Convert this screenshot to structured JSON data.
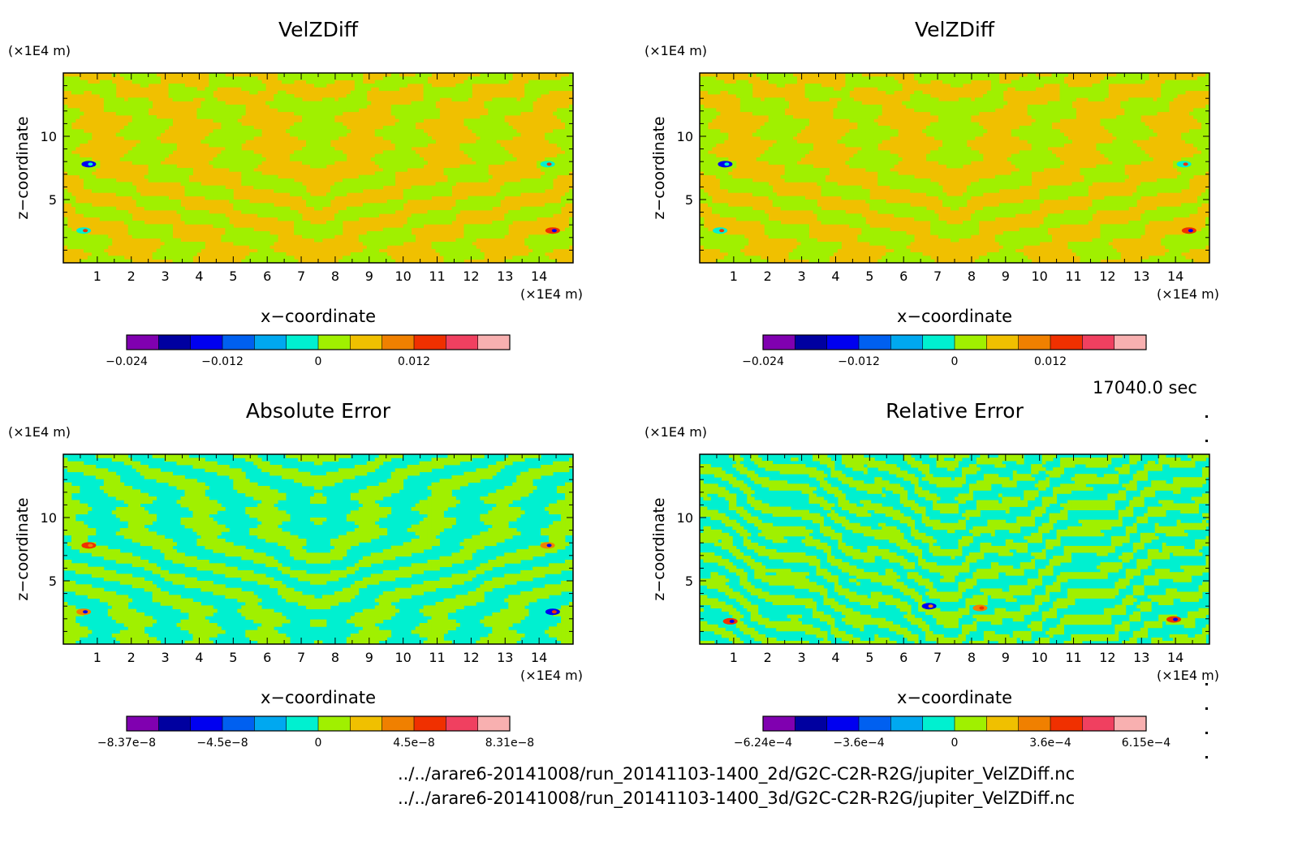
{
  "time_label": "17040.0 sec",
  "files": [
    "../../arare6-20141008/run_20141103-1400_2d/G2C-C2R-R2G/jupiter_VelZDiff.nc",
    "../../arare6-20141008/run_20141103-1400_3d/G2C-C2R-R2G/jupiter_VelZDiff.nc"
  ],
  "palette": [
    "#8000b0",
    "#0000a0",
    "#0000f0",
    "#0060f0",
    "#00a8f0",
    "#00f0d0",
    "#a0f000",
    "#f0c000",
    "#f08000",
    "#f03000",
    "#f04060",
    "#f8b0b0"
  ],
  "chart_data": [
    {
      "type": "heatmap",
      "title": "VelZDiff",
      "xlabel": "x−coordinate",
      "ylabel": "z−coordinate",
      "x_unit": "(×1E4 m)",
      "y_unit": "(×1E4 m)",
      "xlim": [
        0,
        15
      ],
      "ylim": [
        0,
        15
      ],
      "x_ticks": [
        1,
        2,
        3,
        4,
        5,
        6,
        7,
        8,
        9,
        10,
        11,
        12,
        13,
        14
      ],
      "y_ticks": [
        5,
        10
      ],
      "pattern": "velz",
      "colorbar": {
        "tick_labels": [
          "−0.024",
          "−0.012",
          "0",
          "0.012"
        ],
        "tick_bins": [
          0,
          3,
          6,
          9
        ],
        "bins": 12
      }
    },
    {
      "type": "heatmap",
      "title": "VelZDiff",
      "xlabel": "x−coordinate",
      "ylabel": "z−coordinate",
      "x_unit": "(×1E4 m)",
      "y_unit": "(×1E4 m)",
      "xlim": [
        0,
        15
      ],
      "ylim": [
        0,
        15
      ],
      "x_ticks": [
        1,
        2,
        3,
        4,
        5,
        6,
        7,
        8,
        9,
        10,
        11,
        12,
        13,
        14
      ],
      "y_ticks": [
        5,
        10
      ],
      "pattern": "velz",
      "colorbar": {
        "tick_labels": [
          "−0.024",
          "−0.012",
          "0",
          "0.012"
        ],
        "tick_bins": [
          0,
          3,
          6,
          9
        ],
        "bins": 12
      }
    },
    {
      "type": "heatmap",
      "title": "Absolute Error",
      "xlabel": "x−coordinate",
      "ylabel": "z−coordinate",
      "x_unit": "(×1E4 m)",
      "y_unit": "(×1E4 m)",
      "xlim": [
        0,
        15
      ],
      "ylim": [
        0,
        15
      ],
      "x_ticks": [
        1,
        2,
        3,
        4,
        5,
        6,
        7,
        8,
        9,
        10,
        11,
        12,
        13,
        14
      ],
      "y_ticks": [
        5,
        10
      ],
      "pattern": "abs",
      "colorbar": {
        "tick_labels": [
          "−8.37e−8",
          "−4.5e−8",
          "0",
          "4.5e−8",
          "8.31e−8"
        ],
        "tick_bins": [
          0,
          3,
          6,
          9,
          12
        ],
        "bins": 12
      }
    },
    {
      "type": "heatmap",
      "title": "Relative Error",
      "xlabel": "x−coordinate",
      "ylabel": "z−coordinate",
      "x_unit": "(×1E4 m)",
      "y_unit": "(×1E4 m)",
      "xlim": [
        0,
        15
      ],
      "ylim": [
        0,
        15
      ],
      "x_ticks": [
        1,
        2,
        3,
        4,
        5,
        6,
        7,
        8,
        9,
        10,
        11,
        12,
        13,
        14
      ],
      "y_ticks": [
        5,
        10
      ],
      "pattern": "rel",
      "colorbar": {
        "tick_labels": [
          "−6.24e−4",
          "−3.6e−4",
          "0",
          "3.6e−4",
          "6.15e−4"
        ],
        "tick_bins": [
          0,
          3,
          6,
          9,
          12
        ],
        "bins": 12
      }
    }
  ]
}
